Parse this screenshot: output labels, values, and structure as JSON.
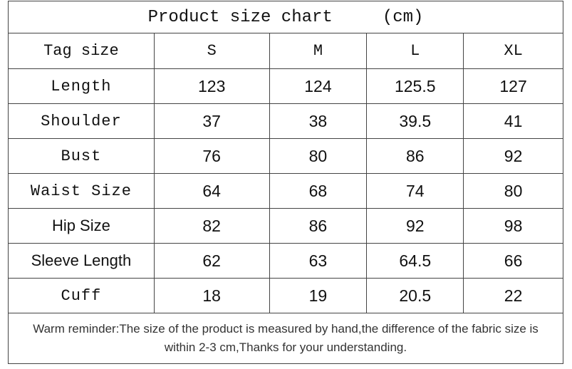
{
  "title": "Product size chart",
  "unit": "(cm)",
  "table": {
    "header": [
      "Tag size",
      "S",
      "M",
      "L",
      "XL"
    ],
    "rows": [
      [
        "Length",
        123,
        124,
        125.5,
        127
      ],
      [
        "Shoulder",
        37,
        38,
        39.5,
        41
      ],
      [
        "Bust",
        76,
        80,
        86,
        92
      ],
      [
        "Waist Size",
        64,
        68,
        74,
        80
      ],
      [
        "Hip Size",
        82,
        86,
        92,
        98
      ],
      [
        "Sleeve Length",
        62,
        63,
        64.5,
        66
      ],
      [
        "Cuff",
        18,
        19,
        20.5,
        22
      ]
    ]
  },
  "note": "Warm reminder:The size of the product is measured by hand,the difference of the fabric size is within 2-3 cm,Thanks for your understanding."
}
